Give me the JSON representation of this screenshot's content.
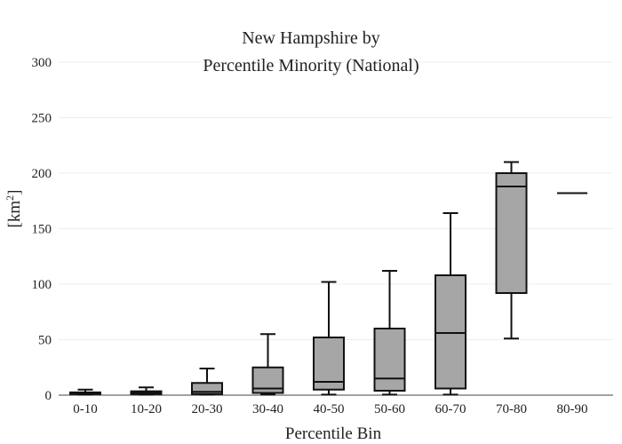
{
  "chart_data": {
    "type": "box",
    "title_lines": [
      "New Hampshire  by",
      "Percentile Minority (National)"
    ],
    "xlabel": "Percentile Bin",
    "ylabel": "[km",
    "ylabel_sup": "2",
    "ylabel_close": "]",
    "ylim": [
      0,
      300
    ],
    "yticks": [
      0,
      50,
      100,
      150,
      200,
      250,
      300
    ],
    "grid": true,
    "box_fill": "#a6a6a6",
    "line_color": "#111111",
    "categories": [
      "0-10",
      "10-20",
      "20-30",
      "30-40",
      "40-50",
      "50-60",
      "60-70",
      "70-80",
      "80-90"
    ],
    "boxes": [
      {
        "min": 0.5,
        "q1": 1,
        "median": 1.5,
        "q3": 2.5,
        "max": 5
      },
      {
        "min": 0.5,
        "q1": 1,
        "median": 2,
        "q3": 3.5,
        "max": 7
      },
      {
        "min": 0.5,
        "q1": 1,
        "median": 3,
        "q3": 11,
        "max": 24
      },
      {
        "min": 0.5,
        "q1": 2,
        "median": 6,
        "q3": 25,
        "max": 55
      },
      {
        "min": 0.5,
        "q1": 5,
        "median": 12,
        "q3": 52,
        "max": 102
      },
      {
        "min": 0.5,
        "q1": 4,
        "median": 15,
        "q3": 60,
        "max": 112
      },
      {
        "min": 0.5,
        "q1": 6,
        "median": 56,
        "q3": 108,
        "max": 164
      },
      {
        "min": 51,
        "q1": 92,
        "median": 188,
        "q3": 200,
        "max": 210
      },
      {
        "min": 182,
        "q1": 182,
        "median": 182,
        "q3": 182,
        "max": 182
      }
    ]
  }
}
